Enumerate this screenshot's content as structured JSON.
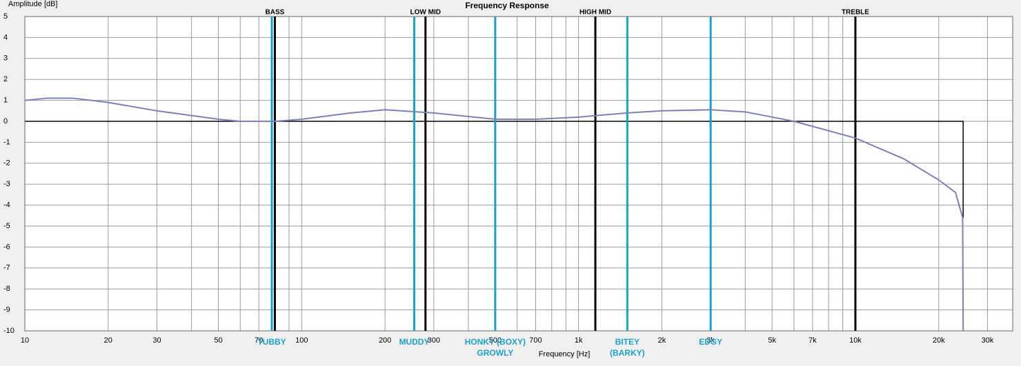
{
  "chart_data": {
    "type": "line",
    "title": "Frequency Response",
    "x_label": "Frequency [Hz]",
    "y_label": "Amplitude [dB]",
    "xscale": "log",
    "xlim": [
      10,
      37000
    ],
    "ylim": [
      -10,
      5
    ],
    "xticks": [
      10,
      20,
      30,
      50,
      70,
      100,
      200,
      300,
      500,
      700,
      {
        "value": 1000,
        "label": "1k"
      },
      {
        "value": 2000,
        "label": "2k"
      },
      {
        "value": 3000,
        "label": "3k"
      },
      {
        "value": 5000,
        "label": "5k"
      },
      {
        "value": 7000,
        "label": "7k"
      },
      {
        "value": 10000,
        "label": "10k"
      },
      {
        "value": 20000,
        "label": "20k"
      },
      {
        "value": 30000,
        "label": "30k"
      }
    ],
    "xgrid_minor": [
      40,
      60,
      80,
      90,
      400,
      600,
      800,
      900,
      4000,
      6000,
      8000,
      9000
    ],
    "yticks": [
      5,
      4,
      3,
      2,
      1,
      0,
      -1,
      -2,
      -3,
      -4,
      -5,
      -6,
      -7,
      -8,
      -9,
      -10
    ],
    "grid": true,
    "x": [
      10,
      12,
      15,
      20,
      30,
      50,
      60,
      80,
      100,
      150,
      200,
      300,
      500,
      700,
      1000,
      1500,
      2000,
      3000,
      4000,
      6000,
      10000,
      15000,
      20000,
      23000,
      24400,
      24500
    ],
    "series": [
      {
        "color": "#7f7fb8",
        "values": [
          1.0,
          1.1,
          1.1,
          0.9,
          0.5,
          0.1,
          0.0,
          0.0,
          0.1,
          0.4,
          0.55,
          0.4,
          0.1,
          0.1,
          0.2,
          0.4,
          0.5,
          0.55,
          0.45,
          0.0,
          -0.8,
          -1.8,
          -2.8,
          -3.4,
          -4.6,
          -10
        ]
      }
    ],
    "bands": {
      "color": "#000000",
      "items": [
        {
          "label": "BASS",
          "freq": 80
        },
        {
          "label": "LOW MID",
          "freq": 280
        },
        {
          "label": "HIGH MID",
          "freq": 1150
        },
        {
          "label": "TREBLE",
          "freq": 10000
        }
      ]
    },
    "zones": {
      "color": "#1ba1c9",
      "items": [
        {
          "label": [
            "TUBBY"
          ],
          "freq": 78
        },
        {
          "label": [
            "MUDDY"
          ],
          "freq": 255
        },
        {
          "label": [
            "HONKY (BOXY)",
            "GROWLY"
          ],
          "freq": 500
        },
        {
          "label": [
            "BITEY",
            "(BARKY)"
          ],
          "freq": 1500
        },
        {
          "label": [
            "EDGY"
          ],
          "freq": 3000
        }
      ]
    }
  }
}
